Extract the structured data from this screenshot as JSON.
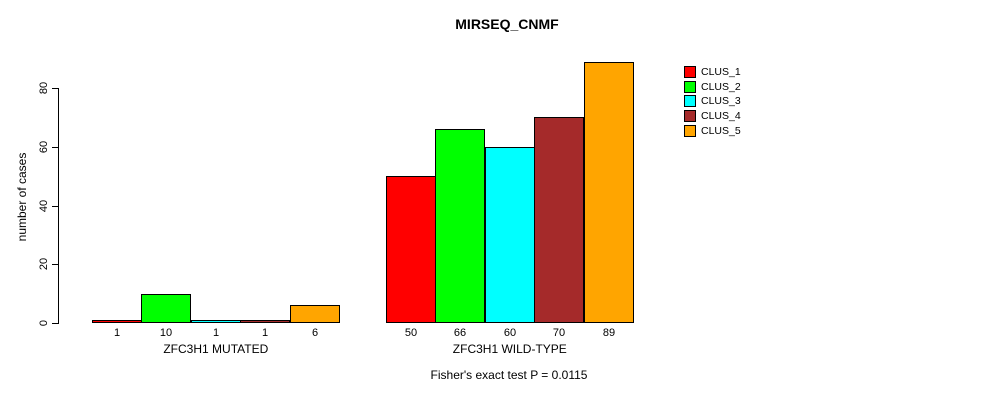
{
  "chart_data": {
    "type": "bar",
    "title": "MIRSEQ_CNMF",
    "ylabel": "number of cases",
    "xlabel": "",
    "yticks": [
      0,
      20,
      40,
      60,
      80
    ],
    "ylim": [
      0,
      89
    ],
    "grid": false,
    "legend_position": "right-outside-top",
    "annotation": "Fisher's exact test P = 0.0115",
    "categories": [
      "ZFC3H1 MUTATED",
      "ZFC3H1 WILD-TYPE"
    ],
    "series": [
      {
        "name": "CLUS_1",
        "color": "#ff0000",
        "values": [
          1,
          50
        ]
      },
      {
        "name": "CLUS_2",
        "color": "#00ff00",
        "values": [
          10,
          66
        ]
      },
      {
        "name": "CLUS_3",
        "color": "#00ffff",
        "values": [
          1,
          60
        ]
      },
      {
        "name": "CLUS_4",
        "color": "#a52a2a",
        "values": [
          1,
          70
        ]
      },
      {
        "name": "CLUS_5",
        "color": "#ffa500",
        "values": [
          6,
          89
        ]
      }
    ],
    "bar_value_labels": [
      [
        "1",
        "10",
        "1",
        "1",
        "6"
      ],
      [
        "50",
        "66",
        "60",
        "70",
        "89"
      ]
    ],
    "colors": {
      "background": "#ffffff",
      "axis": "#000000",
      "text": "#000000"
    }
  }
}
